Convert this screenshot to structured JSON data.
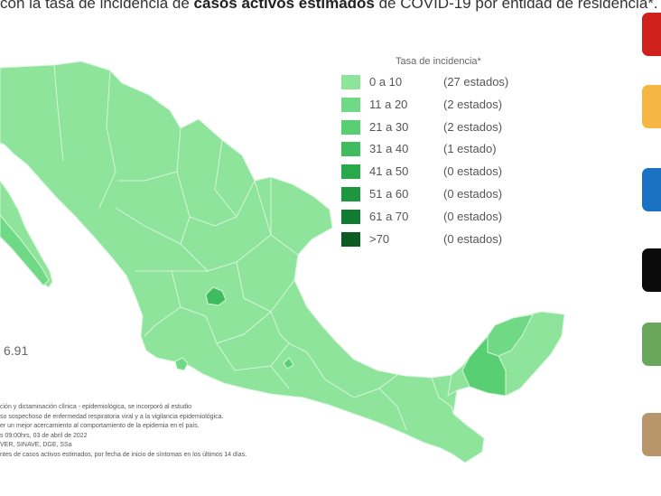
{
  "title": {
    "prefix": "con la tasa de incidencia de ",
    "bold": "casos activos estimados",
    "suffix": " de COVID-19 por entidad de residencia*."
  },
  "legend": {
    "title": "Tasa de incidencia*",
    "items": [
      {
        "range": "0 a  10",
        "count": "(27 estados)",
        "color": "#8fe49c"
      },
      {
        "range": "11 a  20",
        "count": "(2 estados)",
        "color": "#6fd985"
      },
      {
        "range": "21 a  30",
        "count": "(2 estados)",
        "color": "#59cf74"
      },
      {
        "range": "31 a  40",
        "count": "(1 estado)",
        "color": "#3fbd5e"
      },
      {
        "range": "41 a  50",
        "count": "(0 estados)",
        "color": "#2aa94c"
      },
      {
        "range": "51 a  60",
        "count": "(0 estados)",
        "color": "#1e963f"
      },
      {
        "range": "61 a  70",
        "count": "(0 estados)",
        "color": "#137a31"
      },
      {
        "range": ">70",
        "count": "(0 estados)",
        "color": "#0b5c23"
      }
    ]
  },
  "national_rate": "6.91",
  "footnotes": [
    "ción y dictaminación clínica - epidemiológica, se incorporó al estudio",
    "so sospechoso de enfermedad respiratoria viral y a la vigilancia epidemiológica.",
    "er un mejor acercamiento al comportamiento de la epidemia en el país.",
    "s 09:00hrs, 03 de abril de 2022",
    "VER, SINAVE, DGE, SSa",
    "ntes de casos activos estimados, por fecha de inicio de síntomas en los últimos 14 días."
  ],
  "colors": {
    "state_fill": "#8fe49c",
    "state_border": "#d6f5da",
    "side_boxes": [
      "#d0201c",
      "#f6b643",
      "#1b72c4",
      "#0b0b0b",
      "#69a85c",
      "#b8956a"
    ]
  }
}
